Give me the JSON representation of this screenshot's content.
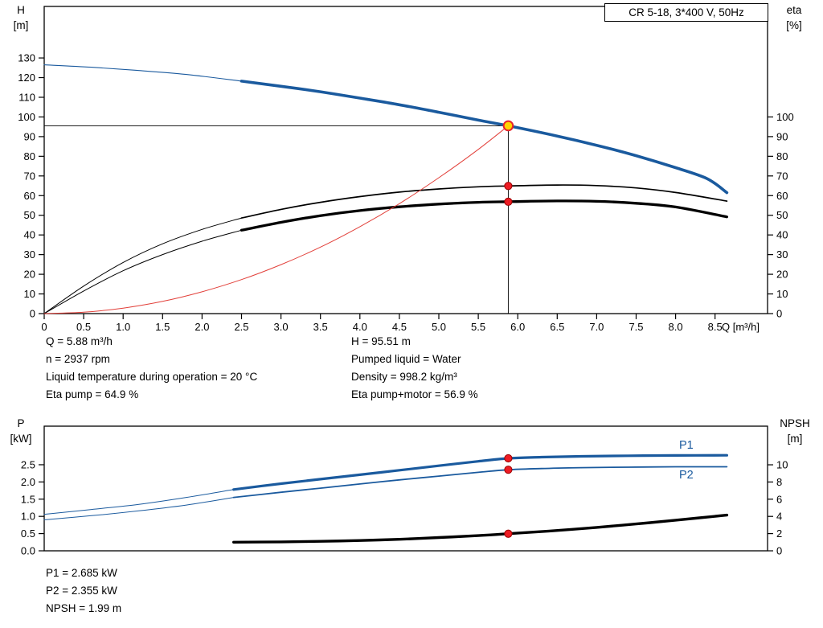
{
  "header": {
    "title": "CR 5-18, 3*400 V, 50Hz"
  },
  "info": {
    "top_left": [
      "Q = 5.88 m³/h",
      "n = 2937 rpm",
      "Liquid temperature during operation = 20 °C",
      "Eta pump = 64.9 %"
    ],
    "top_right": [
      "H = 95.51 m",
      "Pumped liquid = Water",
      "Density = 998.2 kg/m³",
      "Eta pump+motor = 56.9 %"
    ],
    "bottom": [
      "P1 = 2.685 kW",
      "P2 = 2.355 kW",
      "NPSH = 1.99 m"
    ]
  },
  "colors": {
    "curve_blue": "#1a5a9e",
    "curve_black": "#000000",
    "system_red": "#e2403a",
    "marker_red": "#ed1c24",
    "duty_yellow": "#ffd400"
  },
  "chart_data": [
    {
      "type": "line",
      "name": "qh-eta-chart",
      "title": "CR 5-18, 3*400 V, 50Hz",
      "x_axis": {
        "min": 0,
        "max": 9.165,
        "unit": "Q [m³/h]",
        "tick_values": [
          0,
          0.5,
          1,
          1.5,
          2,
          2.5,
          3,
          3.5,
          4,
          4.5,
          5,
          5.5,
          6,
          6.5,
          7,
          7.5,
          8,
          8.5
        ],
        "tick_labels": [
          "0",
          "0.5",
          "1.0",
          "1.5",
          "2.0",
          "2.5",
          "3.0",
          "3.5",
          "4.0",
          "4.5",
          "5.0",
          "5.5",
          "6.0",
          "6.5",
          "7.0",
          "7.5",
          "8.0",
          "8.5"
        ]
      },
      "y_left": {
        "title_lines": [
          "H",
          "[m]"
        ],
        "min": 0,
        "max": 156.2,
        "tick_values": [
          0,
          10,
          20,
          30,
          40,
          50,
          60,
          70,
          80,
          90,
          100,
          110,
          120,
          130
        ],
        "tick_labels": [
          "0",
          "10",
          "20",
          "30",
          "40",
          "50",
          "60",
          "70",
          "80",
          "90",
          "100",
          "110",
          "120",
          "130"
        ]
      },
      "y_right": {
        "title_lines": [
          "eta",
          "[%]"
        ],
        "min": 0,
        "max": 156.2,
        "tick_values": [
          0,
          10,
          20,
          30,
          40,
          50,
          60,
          70,
          80,
          90,
          100
        ],
        "tick_labels": [
          "0",
          "10",
          "20",
          "30",
          "40",
          "50",
          "60",
          "70",
          "80",
          "90",
          "100"
        ]
      },
      "guides": [
        {
          "name": "duty-vertical-guide",
          "type": "v",
          "x": 5.88,
          "y_from": 0,
          "y_to": 95.51
        },
        {
          "name": "duty-horizontal-guide",
          "type": "h",
          "y": 95.51,
          "x_from": 0,
          "x_to": 5.88
        }
      ],
      "series": [
        {
          "name": "head-curve-leadin",
          "axis": "left",
          "color": "#1a5a9e",
          "width": 1.1,
          "points": [
            [
              0,
              126.5
            ],
            [
              0.6,
              125.3
            ],
            [
              1.2,
              123.6
            ],
            [
              1.8,
              121.6
            ],
            [
              2.5,
              118.2
            ]
          ]
        },
        {
          "name": "head-curve",
          "axis": "left",
          "color": "#1a5a9e",
          "width": 3.6,
          "points": [
            [
              2.5,
              118.2
            ],
            [
              3,
              115.6
            ],
            [
              3.5,
              112.8
            ],
            [
              4,
              109.6
            ],
            [
              4.5,
              106.2
            ],
            [
              5,
              102.4
            ],
            [
              5.5,
              98.4
            ],
            [
              5.88,
              95.51
            ],
            [
              6.5,
              90.3
            ],
            [
              7,
              85.6
            ],
            [
              7.5,
              80.3
            ],
            [
              8,
              74.2
            ],
            [
              8.4,
              68.6
            ],
            [
              8.65,
              61.5
            ]
          ]
        },
        {
          "name": "eta-pump-curve-leadin",
          "axis": "right",
          "color": "#000000",
          "width": 1,
          "points": [
            [
              0,
              0
            ],
            [
              0.5,
              14
            ],
            [
              1,
              26
            ],
            [
              1.5,
              35.5
            ],
            [
              2,
              42.8
            ],
            [
              2.5,
              48.6
            ]
          ]
        },
        {
          "name": "eta-pump-curve",
          "axis": "right",
          "color": "#000000",
          "width": 1.7,
          "points": [
            [
              2.5,
              48.6
            ],
            [
              3,
              53
            ],
            [
              3.5,
              56.6
            ],
            [
              4,
              59.5
            ],
            [
              4.5,
              61.8
            ],
            [
              5,
              63.4
            ],
            [
              5.5,
              64.5
            ],
            [
              5.88,
              64.9
            ],
            [
              6.5,
              65.4
            ],
            [
              7,
              65.1
            ],
            [
              7.5,
              63.9
            ],
            [
              8,
              61.6
            ],
            [
              8.65,
              57.2
            ]
          ]
        },
        {
          "name": "eta-pump-motor-curve-leadin",
          "axis": "right",
          "color": "#000000",
          "width": 1,
          "points": [
            [
              0,
              0
            ],
            [
              0.5,
              11.5
            ],
            [
              1,
              21.8
            ],
            [
              1.5,
              30
            ],
            [
              2,
              36.8
            ],
            [
              2.5,
              42.4
            ]
          ]
        },
        {
          "name": "eta-pump-motor-curve",
          "axis": "right",
          "color": "#000000",
          "width": 3.3,
          "points": [
            [
              2.5,
              42.4
            ],
            [
              3,
              46.4
            ],
            [
              3.5,
              49.8
            ],
            [
              4,
              52.4
            ],
            [
              4.5,
              54.3
            ],
            [
              5,
              55.7
            ],
            [
              5.5,
              56.6
            ],
            [
              5.88,
              56.9
            ],
            [
              6.5,
              57.3
            ],
            [
              7,
              57.1
            ],
            [
              7.5,
              56.1
            ],
            [
              8,
              54.2
            ],
            [
              8.65,
              49.2
            ]
          ]
        },
        {
          "name": "system-curve",
          "axis": "left",
          "color": "#e2403a",
          "width": 1,
          "points": [
            [
              0,
              0
            ],
            [
              0.5,
              0.7
            ],
            [
              1,
              2.8
            ],
            [
              1.5,
              6.2
            ],
            [
              2,
              11.1
            ],
            [
              2.5,
              17.3
            ],
            [
              3,
              24.9
            ],
            [
              3.5,
              33.8
            ],
            [
              4,
              44.2
            ],
            [
              4.5,
              55.9
            ],
            [
              5,
              69.1
            ],
            [
              5.5,
              83.5
            ],
            [
              5.88,
              95.51
            ]
          ]
        }
      ],
      "markers": [
        {
          "name": "eta-pump-duty-marker",
          "x": 5.88,
          "y": 64.9,
          "axis": "right",
          "r": 4.6,
          "fill": "#ed1c24",
          "stroke": "#9b0000",
          "stroke_width": 1
        },
        {
          "name": "eta-pump-motor-duty-marker",
          "x": 5.88,
          "y": 56.9,
          "axis": "right",
          "r": 4.6,
          "fill": "#ed1c24",
          "stroke": "#9b0000",
          "stroke_width": 1
        },
        {
          "name": "duty-point-marker",
          "x": 5.88,
          "y": 95.51,
          "axis": "left",
          "r": 5.8,
          "fill": "#ffd400",
          "stroke": "#e8232a",
          "stroke_width": 2
        }
      ]
    },
    {
      "type": "line",
      "name": "power-npsh-chart",
      "title": "",
      "x_axis": {
        "min": 0,
        "max": 9.165,
        "unit": "",
        "tick_values": [],
        "tick_labels": []
      },
      "y_left": {
        "title_lines": [
          "P",
          "[kW]"
        ],
        "min": 0,
        "max": 3.62,
        "tick_values": [
          0,
          0.5,
          1,
          1.5,
          2,
          2.5
        ],
        "tick_labels": [
          "0.0",
          "0.5",
          "1.0",
          "1.5",
          "2.0",
          "2.5"
        ]
      },
      "y_right": {
        "title_lines": [
          "NPSH",
          "[m]"
        ],
        "min": 0,
        "max": 14.49,
        "tick_values": [
          0,
          2,
          4,
          6,
          8,
          10
        ],
        "tick_labels": [
          "0",
          "2",
          "4",
          "6",
          "8",
          "10"
        ]
      },
      "guides": [],
      "series": [
        {
          "name": "p1-curve-leadin",
          "axis": "left",
          "color": "#1a5a9e",
          "width": 1,
          "points": [
            [
              0,
              1.06
            ],
            [
              0.6,
              1.2
            ],
            [
              1.2,
              1.35
            ],
            [
              1.8,
              1.55
            ],
            [
              2.4,
              1.78
            ]
          ]
        },
        {
          "name": "p1-curve",
          "axis": "left",
          "color": "#1a5a9e",
          "width": 3.2,
          "points": [
            [
              2.4,
              1.78
            ],
            [
              3,
              1.95
            ],
            [
              3.5,
              2.08
            ],
            [
              4,
              2.21
            ],
            [
              4.5,
              2.34
            ],
            [
              5,
              2.47
            ],
            [
              5.5,
              2.6
            ],
            [
              5.88,
              2.685
            ],
            [
              6.3,
              2.72
            ],
            [
              6.8,
              2.745
            ],
            [
              7.4,
              2.76
            ],
            [
              8,
              2.77
            ],
            [
              8.65,
              2.775
            ]
          ]
        },
        {
          "name": "p2-curve-leadin",
          "axis": "left",
          "color": "#1a5a9e",
          "width": 1,
          "points": [
            [
              0,
              0.9
            ],
            [
              0.6,
              1.02
            ],
            [
              1.2,
              1.16
            ],
            [
              1.8,
              1.33
            ],
            [
              2.4,
              1.55
            ]
          ]
        },
        {
          "name": "p2-curve",
          "axis": "left",
          "color": "#1a5a9e",
          "width": 1.8,
          "points": [
            [
              2.4,
              1.55
            ],
            [
              3,
              1.7
            ],
            [
              3.5,
              1.82
            ],
            [
              4,
              1.94
            ],
            [
              4.5,
              2.06
            ],
            [
              5,
              2.17
            ],
            [
              5.5,
              2.28
            ],
            [
              5.88,
              2.355
            ],
            [
              6.3,
              2.39
            ],
            [
              6.8,
              2.415
            ],
            [
              7.4,
              2.43
            ],
            [
              8,
              2.44
            ],
            [
              8.65,
              2.44
            ]
          ]
        },
        {
          "name": "npsh-curve",
          "axis": "right",
          "color": "#000000",
          "width": 3.4,
          "points": [
            [
              2.4,
              1.0
            ],
            [
              3,
              1.04
            ],
            [
              3.5,
              1.1
            ],
            [
              4,
              1.2
            ],
            [
              4.5,
              1.34
            ],
            [
              5,
              1.54
            ],
            [
              5.5,
              1.77
            ],
            [
              5.88,
              1.99
            ],
            [
              6.4,
              2.3
            ],
            [
              7,
              2.72
            ],
            [
              7.5,
              3.12
            ],
            [
              8,
              3.56
            ],
            [
              8.65,
              4.15
            ]
          ]
        }
      ],
      "markers": [
        {
          "name": "p1-duty-marker",
          "x": 5.88,
          "y": 2.685,
          "axis": "left",
          "r": 4.6,
          "fill": "#ed1c24",
          "stroke": "#9b0000",
          "stroke_width": 1
        },
        {
          "name": "p2-duty-marker",
          "x": 5.88,
          "y": 2.355,
          "axis": "left",
          "r": 4.6,
          "fill": "#ed1c24",
          "stroke": "#9b0000",
          "stroke_width": 1
        },
        {
          "name": "npsh-duty-marker",
          "x": 5.88,
          "y": 1.99,
          "axis": "right",
          "r": 4.6,
          "fill": "#ed1c24",
          "stroke": "#9b0000",
          "stroke_width": 1
        }
      ],
      "curve_labels": [
        {
          "text": "P1"
        },
        {
          "text": "P2"
        }
      ]
    }
  ]
}
